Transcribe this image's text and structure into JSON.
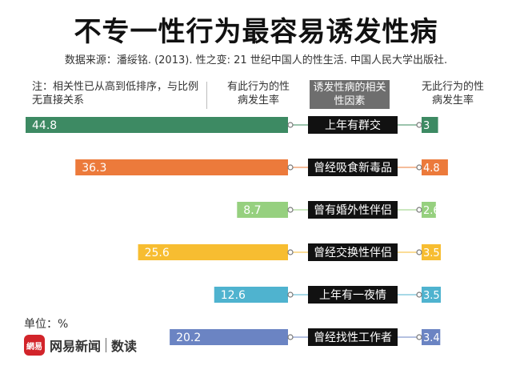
{
  "title": "不专一性行为最容易诱发性病",
  "source": "数据来源：潘绥铭. (2013). 性之变: 21 世纪中国人的性生活. 中国人民大学出版社.",
  "note": "注：相关性已从高到低排序，与比例无直接关系",
  "columns": {
    "left": "有此行为的性病发生率",
    "middle": "诱发性病的相关性因素",
    "right": "无此行为的性病发生率"
  },
  "unit_label": "单位：%",
  "logo": {
    "mark": "網易",
    "brand": "网易新闻",
    "sub": "数读"
  },
  "chart_data": {
    "type": "bar",
    "categories": [
      "上年有群交",
      "曾经吸食新毒品",
      "曾有婚外性伴侣",
      "曾经交换性伴侣",
      "上年有一夜情",
      "曾经找性工作者"
    ],
    "series": [
      {
        "name": "有此行为的性病发生率",
        "values": [
          44.8,
          36.3,
          8.7,
          25.6,
          12.6,
          20.2
        ]
      },
      {
        "name": "无此行为的性病发生率",
        "values": [
          3,
          4.8,
          2.6,
          3.5,
          3.5,
          3.4
        ]
      }
    ],
    "colors": [
      "#3d8a63",
      "#ec7a3b",
      "#96d07f",
      "#f7bd31",
      "#4fb3cf",
      "#6b84c3"
    ],
    "light_colors": [
      "#9cc4ad",
      "#f5bd9b",
      "#cae7bf",
      "#fbdd98",
      "#a7d9e7",
      "#b5c1e1"
    ],
    "label_bg": "#111111"
  }
}
